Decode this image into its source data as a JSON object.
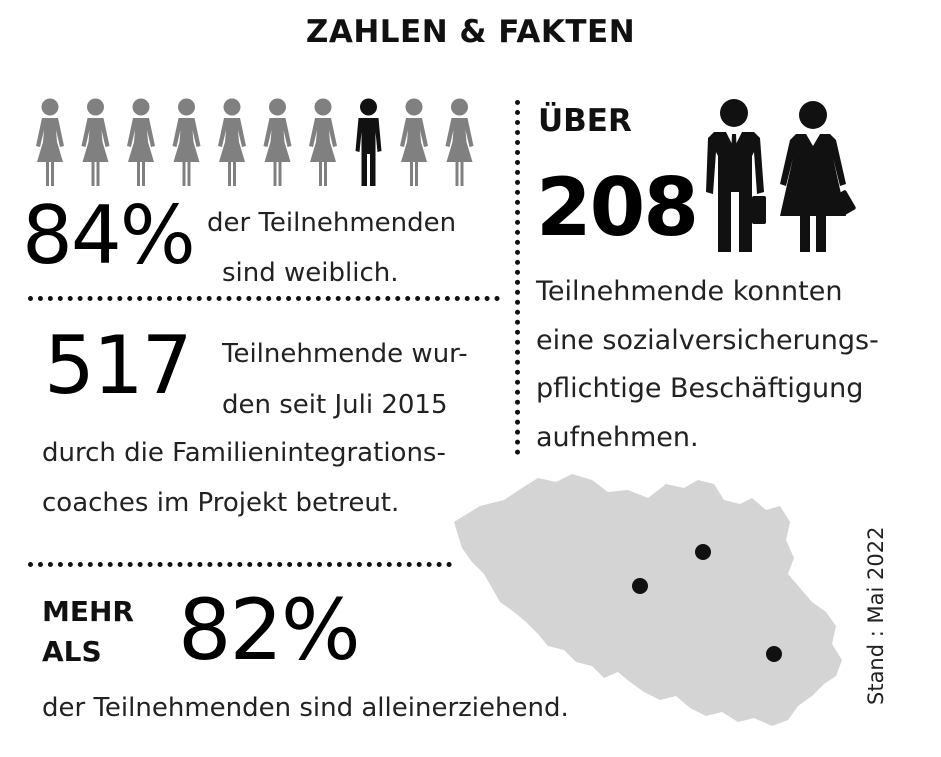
{
  "title": "ZAHLEN & FAKTEN",
  "women": {
    "icons_total": 10,
    "highlighted_index": 7,
    "icon_color": "#808080",
    "highlight_color": "#111111",
    "value": "84%",
    "line1": "der Teilnehmenden",
    "line2": "sind weiblich."
  },
  "employment": {
    "prefix": "ÜBER",
    "value": "208",
    "lines": [
      "Teilnehmende konnten",
      "eine sozialversicherungs-",
      "pflichtige Beschäftigung",
      "aufnehmen."
    ]
  },
  "coaching": {
    "value": "517",
    "line1": "Teilnehmende wur-",
    "line2": "den seit Juli 2015",
    "line3": "durch die Familienintegrations-",
    "line4": "coaches im Projekt betreut."
  },
  "single_parents": {
    "prefix_line1": "MEHR",
    "prefix_line2": "ALS",
    "value": "82%",
    "line1": "der Teilnehmenden sind alleinerziehend."
  },
  "map": {
    "fill_color": "#d4d4d4",
    "marker_color": "#111111",
    "marker_count": 3
  },
  "footnote": "Stand : Mai 2022"
}
